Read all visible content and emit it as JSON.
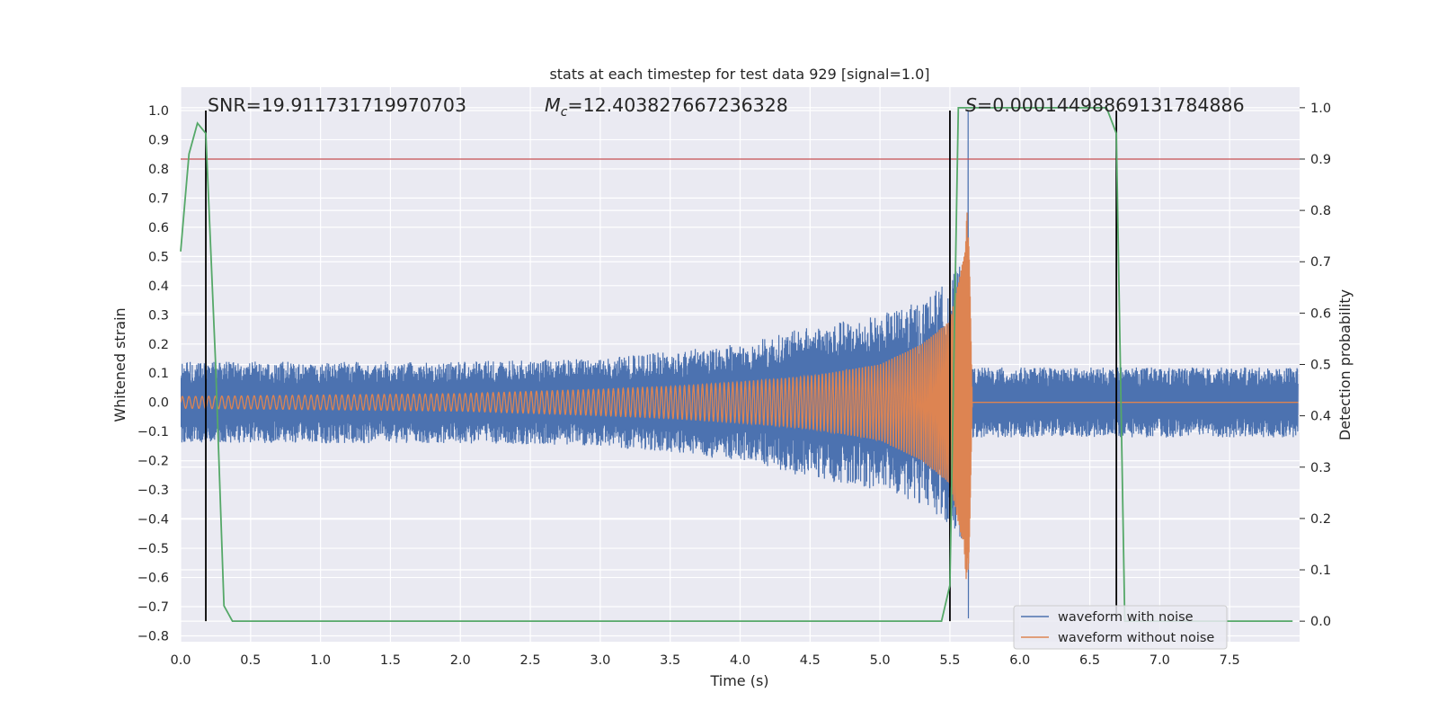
{
  "chart_data": {
    "type": "line",
    "title": "stats at each timestep for test data 929 [signal=1.0]",
    "xlabel": "Time (s)",
    "ylabel": "Whitened strain",
    "y2label": "Detection probability",
    "xlim": [
      0.0,
      8.0
    ],
    "ylim": [
      -0.82,
      1.08
    ],
    "y2lim": [
      -0.04,
      1.04
    ],
    "xticks": [
      0.0,
      0.5,
      1.0,
      1.5,
      2.0,
      2.5,
      3.0,
      3.5,
      4.0,
      4.5,
      5.0,
      5.5,
      6.0,
      6.5,
      7.0,
      7.5
    ],
    "xticklabels": [
      "0.0",
      "0.5",
      "1.0",
      "1.5",
      "2.0",
      "2.5",
      "3.0",
      "3.5",
      "4.0",
      "4.5",
      "5.0",
      "5.5",
      "6.0",
      "6.5",
      "7.0",
      "7.5"
    ],
    "yticks": [
      -0.8,
      -0.7,
      -0.6,
      -0.5,
      -0.4,
      -0.3,
      -0.2,
      -0.1,
      0.0,
      0.1,
      0.2,
      0.3,
      0.4,
      0.5,
      0.6,
      0.7,
      0.8,
      0.9,
      1.0
    ],
    "yticklabels": [
      "−0.8",
      "−0.7",
      "−0.6",
      "−0.5",
      "−0.4",
      "−0.3",
      "−0.2",
      "−0.1",
      "0.0",
      "0.1",
      "0.2",
      "0.3",
      "0.4",
      "0.5",
      "0.6",
      "0.7",
      "0.8",
      "0.9",
      "1.0"
    ],
    "y2ticks": [
      0.0,
      0.1,
      0.2,
      0.3,
      0.4,
      0.5,
      0.6,
      0.7,
      0.8,
      0.9,
      1.0
    ],
    "y2ticklabels": [
      "0.0",
      "0.1",
      "0.2",
      "0.3",
      "0.4",
      "0.5",
      "0.6",
      "0.7",
      "0.8",
      "0.9",
      "1.0"
    ],
    "grid": true,
    "legend_position": "bottom-right",
    "annotations": {
      "snr": "SNR=19.911731719970703",
      "mc_symbol": "M",
      "mc_subscript": "c",
      "mc_value": "=12.403827667236328",
      "s_symbol": "S",
      "s_value": "=0.00014498869131784886"
    },
    "threshold": {
      "axis": "right",
      "value": 0.9,
      "color": "#c44e52"
    },
    "vertical_markers": [
      {
        "x": 0.18,
        "y_top": 1.0,
        "y2_bottom": 0.0
      },
      {
        "x": 5.5,
        "y_top": 1.0,
        "y2_bottom": 0.0
      },
      {
        "x": 6.69,
        "y_top": 1.0,
        "y2_bottom": 0.0
      }
    ],
    "series": [
      {
        "name": "waveform with noise",
        "color": "#4c72b0",
        "axis": "left",
        "kind": "noisy strain",
        "noise_amplitude": 0.12,
        "merger_time": 5.63,
        "merger_peak": 1.0,
        "merger_trough": -0.74,
        "envelope": [
          [
            0.0,
            0.14
          ],
          [
            1.0,
            0.14
          ],
          [
            2.0,
            0.14
          ],
          [
            3.0,
            0.15
          ],
          [
            4.0,
            0.2
          ],
          [
            4.5,
            0.26
          ],
          [
            5.0,
            0.3
          ],
          [
            5.3,
            0.35
          ],
          [
            5.5,
            0.42
          ],
          [
            5.6,
            0.5
          ],
          [
            5.63,
            0.0
          ],
          [
            5.66,
            0.12
          ],
          [
            8.0,
            0.12
          ]
        ]
      },
      {
        "name": "waveform without noise",
        "color": "#dd8452",
        "axis": "left",
        "kind": "chirp",
        "start_frequency_hz": 21,
        "envelope": [
          [
            0.0,
            0.02
          ],
          [
            1.0,
            0.025
          ],
          [
            2.0,
            0.03
          ],
          [
            3.0,
            0.045
          ],
          [
            3.5,
            0.055
          ],
          [
            4.0,
            0.07
          ],
          [
            4.5,
            0.09
          ],
          [
            5.0,
            0.13
          ],
          [
            5.3,
            0.2
          ],
          [
            5.5,
            0.28
          ],
          [
            5.6,
            0.5
          ],
          [
            5.63,
            0.72
          ],
          [
            5.66,
            0.0
          ],
          [
            8.0,
            0.0
          ]
        ]
      },
      {
        "name": "detection probability",
        "color": "#55a868",
        "axis": "right",
        "x": [
          0.0,
          0.06,
          0.12,
          0.18,
          0.25,
          0.31,
          0.37,
          1.0,
          2.0,
          3.0,
          4.0,
          5.0,
          5.44,
          5.5,
          5.56,
          5.62,
          6.0,
          6.5,
          6.62,
          6.69,
          6.75,
          7.0,
          7.5,
          7.95
        ],
        "y": [
          0.72,
          0.91,
          0.97,
          0.95,
          0.5,
          0.03,
          0.0,
          0.0,
          0.0,
          0.0,
          0.0,
          0.0,
          0.0,
          0.07,
          1.0,
          1.0,
          1.0,
          1.0,
          1.0,
          0.95,
          0.0,
          0.0,
          0.0,
          0.0
        ]
      }
    ]
  }
}
